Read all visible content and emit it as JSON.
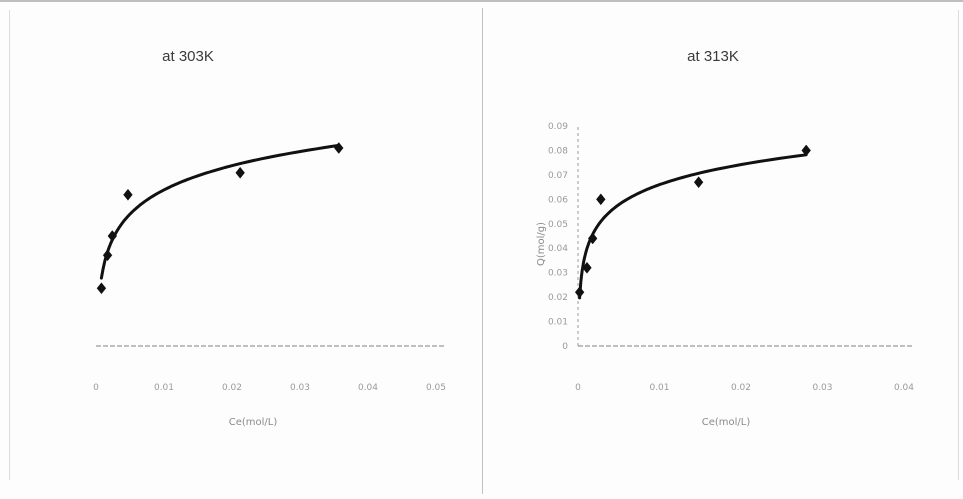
{
  "chart_data": [
    {
      "type": "scatter",
      "title": "at 303K",
      "xlabel": "Ce(mol/L)",
      "ylabel": "",
      "xlim": [
        0,
        0.05
      ],
      "ylim": [
        0,
        0.08
      ],
      "x_ticks": [
        "0",
        "0.01",
        "0.02",
        "0.03",
        "0.04",
        "0.05"
      ],
      "y_ticks": [],
      "grid": false,
      "series": [
        {
          "x": [
            0.0008,
            0.0017,
            0.0024,
            0.0047,
            0.0212,
            0.0357
          ],
          "y": [
            0.021,
            0.033,
            0.04,
            0.055,
            0.063,
            0.072
          ],
          "fit": "log"
        }
      ]
    },
    {
      "type": "scatter",
      "title": "at 313K",
      "xlabel": "Ce(mol/L)",
      "ylabel": "Q(mol/g)",
      "xlim": [
        0,
        0.04
      ],
      "ylim": [
        0,
        0.09
      ],
      "x_ticks": [
        "0",
        "0.01",
        "0.02",
        "0.03",
        "0.04"
      ],
      "y_ticks": [
        "0",
        "0.01",
        "0.02",
        "0.03",
        "0.04",
        "0.05",
        "0.06",
        "0.07",
        "0.08",
        "0.09"
      ],
      "grid": false,
      "series": [
        {
          "x": [
            0.0002,
            0.0011,
            0.0018,
            0.0028,
            0.0148,
            0.028
          ],
          "y": [
            0.022,
            0.032,
            0.044,
            0.06,
            0.067,
            0.08
          ],
          "fit": "log"
        }
      ]
    }
  ]
}
